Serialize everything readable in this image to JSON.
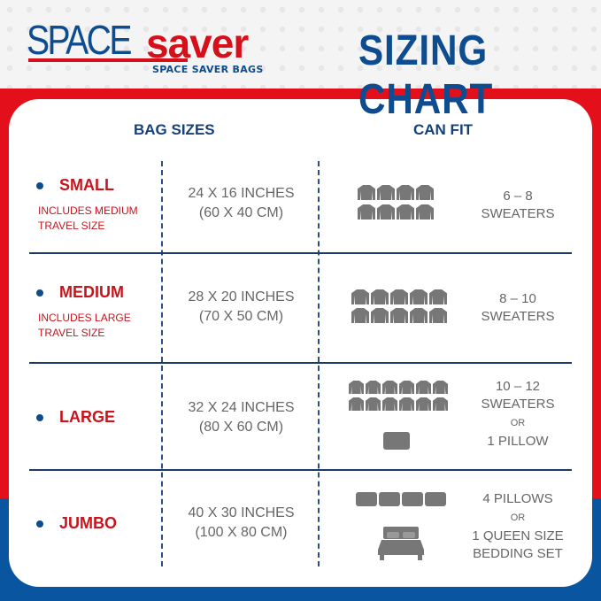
{
  "brand": {
    "logo_space": "SPACE",
    "logo_saver": "saver",
    "logo_sub": "SPACE SAVER BAGS"
  },
  "title": "SIZING CHART",
  "headers": {
    "bag_sizes": "BAG SIZES",
    "can_fit": "CAN FIT"
  },
  "colors": {
    "blue": "#0d4c8f",
    "red": "#e3101b",
    "gray": "#666666"
  },
  "rows": [
    {
      "name": "SMALL",
      "note1": "INCLUDES MEDIUM",
      "note2": "TRAVEL SIZE",
      "dims1": "24 X 16 INCHES",
      "dims2": "(60 X 40 CM)",
      "fit1": "6 – 8",
      "fit2": "SWEATERS",
      "sweater_icons": 8,
      "icon": "sweater-icon"
    },
    {
      "name": "MEDIUM",
      "note1": "INCLUDES LARGE",
      "note2": "TRAVEL SIZE",
      "dims1": "28 X 20 INCHES",
      "dims2": "(70 X 50 CM)",
      "fit1": "8 – 10",
      "fit2": "SWEATERS",
      "sweater_icons": 10,
      "icon": "sweater-icon"
    },
    {
      "name": "LARGE",
      "dims1": "32 X 24 INCHES",
      "dims2": "(80 X 60 CM)",
      "fit1": "10 – 12",
      "fit2": "SWEATERS",
      "fit_or": "OR",
      "fit3": "1 PILLOW",
      "sweater_icons": 12,
      "pillow_icons": 1
    },
    {
      "name": "JUMBO",
      "dims1": "40 X 30 INCHES",
      "dims2": "(100 X 80 CM)",
      "fit1": "4 PILLOWS",
      "fit_or": "OR",
      "fit3": "1 QUEEN SIZE",
      "fit4": "BEDDING SET",
      "pillow_icons": 4,
      "icon": "bed-icon"
    }
  ]
}
